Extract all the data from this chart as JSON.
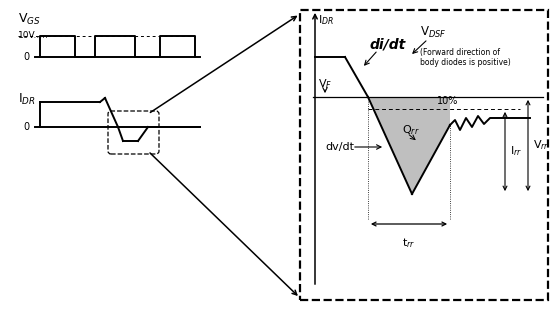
{
  "bg_color": "#ffffff",
  "line_color": "#000000",
  "fill_color": "#aaaaaa",
  "vgs_label": "V$_{GS}$",
  "vgs_0": "0",
  "idr_label": "I$_{DR}$",
  "idr_0": "0",
  "right_idr_label": "I$_{DR}$",
  "vdsf_label": "V$_{DSF}$",
  "vdsf_note": "(Forward direction of\nbody diodes is positive)",
  "didt_label": "di/dt",
  "vf_label": "V$_F$",
  "qrr_label": "Q$_{rr}$",
  "dvdt_label": "dv/dt",
  "ten_pct_label": "10%",
  "irr_label": "I$_{rr}$",
  "vrr_label": "V$_{rr}$",
  "trr_label": "t$_{rr}$",
  "10v_label": "10V....."
}
